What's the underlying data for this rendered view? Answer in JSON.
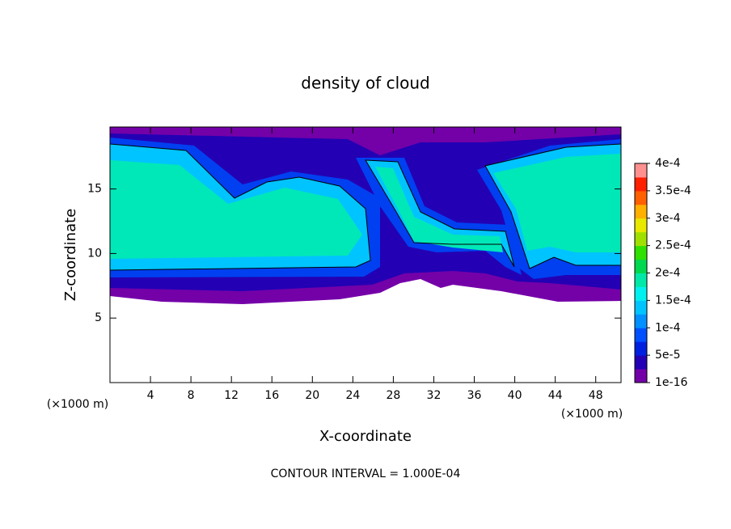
{
  "chart_data": {
    "type": "contour",
    "title": "density of cloud",
    "x_label": "X-coordinate",
    "y_label": "Z-coordinate",
    "x_unit": "(×1000 m)",
    "y_unit": "(×1000 m)",
    "footer": "CONTOUR INTERVAL = 1.000E-04",
    "xlim": [
      0,
      50.5
    ],
    "xticks": [
      4,
      8,
      12,
      16,
      20,
      24,
      28,
      32,
      36,
      40,
      44,
      48
    ],
    "ylim": [
      0,
      19.8
    ],
    "yticks": [
      5,
      10,
      15
    ],
    "colorbar": {
      "clim": [
        1e-16,
        0.0004
      ],
      "ticks": [
        {
          "value": 1e-16,
          "label": "1e-16"
        },
        {
          "value": 5e-05,
          "label": "5e-5"
        },
        {
          "value": 0.0001,
          "label": "1e-4"
        },
        {
          "value": 0.00015,
          "label": "1.5e-4"
        },
        {
          "value": 0.0002,
          "label": "2e-4"
        },
        {
          "value": 0.00025,
          "label": "2.5e-4"
        },
        {
          "value": 0.0003,
          "label": "3e-4"
        },
        {
          "value": 0.00035,
          "label": "3.5e-4"
        },
        {
          "value": 0.0004,
          "label": "4e-4"
        }
      ],
      "colors": [
        "#7400a8",
        "#2400b4",
        "#0020e0",
        "#0050ff",
        "#0090ff",
        "#00c4ff",
        "#00f0f0",
        "#00e8a8",
        "#00d850",
        "#30e000",
        "#a0e000",
        "#e8e800",
        "#ffb000",
        "#ff6000",
        "#ff2000",
        "#ff9090"
      ]
    }
  }
}
